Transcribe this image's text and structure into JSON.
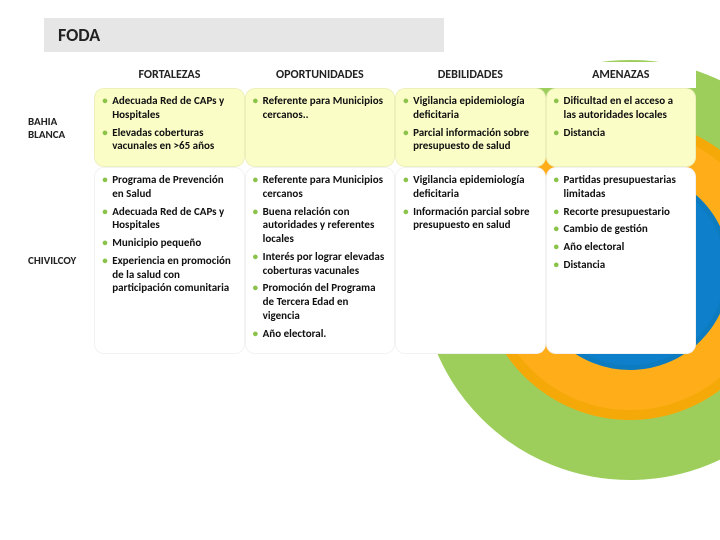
{
  "slide": {
    "title": "FODA",
    "background_color": "#ffffff",
    "title_bar_bg": "#e6e6e6",
    "title_fontsize": 18,
    "title_color": "#222222",
    "ring_colors": [
      "#8cc63e",
      "#ffa500",
      "#0078c8"
    ]
  },
  "table": {
    "columns": [
      "FORTALEZAS",
      "OPORTUNIDADES",
      "DEBILIDADES",
      "AMENAZAS"
    ],
    "header_fontsize": 12,
    "row_label_fontsize": 11,
    "cell_fontsize": 11,
    "bullet_color": "#8bc34a",
    "rows": [
      {
        "label": "BAHIA BLANCA",
        "bg": "#fbfdc7",
        "cells": [
          [
            "Adecuada Red de CAPs y Hospitales",
            "Elevadas coberturas vacunales en >65 años"
          ],
          [
            "Referente para Municipios cercanos.."
          ],
          [
            "Vigilancia epidemiología deficitaria",
            "Parcial información sobre presupuesto de salud"
          ],
          [
            "Dificultad en el acceso a las autoridades locales",
            "Distancia"
          ]
        ]
      },
      {
        "label": "CHIVILCOY",
        "bg": "#ffffff",
        "cells": [
          [
            "Programa de Prevención en Salud",
            "Adecuada Red de CAPs y Hospitales",
            "Municipio pequeño",
            "Experiencia en promoción de la salud con participación comunitaria"
          ],
          [
            "Referente para Municipios cercanos",
            "Buena relación con autoridades y referentes locales",
            "Interés por lograr elevadas coberturas vacunales",
            "Promoción del Programa de Tercera Edad en vigencia",
            "Año electoral."
          ],
          [
            "Vigilancia epidemiología deficitaria",
            "Información parcial sobre presupuesto en salud"
          ],
          [
            "Partidas presupuestarias limitadas",
            "Recorte presupuestario",
            "Cambio de gestión",
            "Año electoral",
            "Distancia"
          ]
        ]
      }
    ]
  }
}
